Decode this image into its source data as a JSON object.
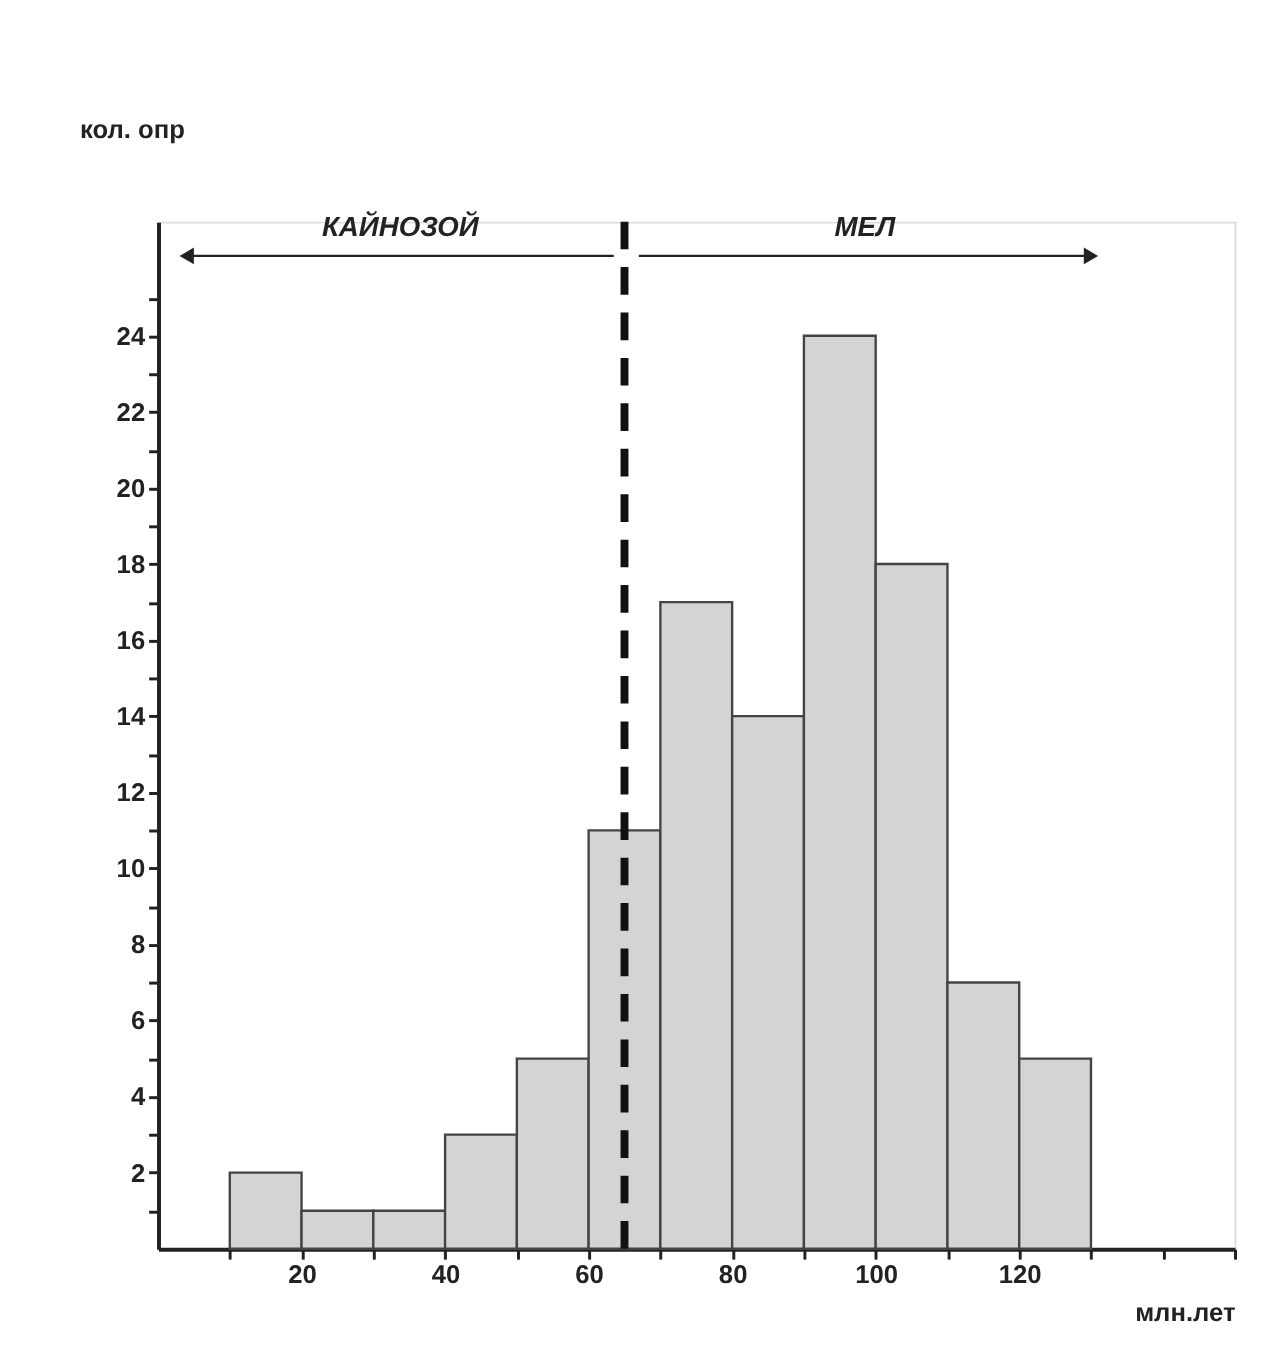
{
  "chart_data": {
    "type": "histogram",
    "xlabel": "млн.лет",
    "ylabel": "кол. опр",
    "bins": [
      10,
      20,
      30,
      40,
      50,
      60,
      70,
      80,
      90,
      100,
      110,
      120,
      130
    ],
    "values": [
      2,
      1,
      1,
      3,
      5,
      11,
      17,
      14,
      24,
      18,
      7,
      5
    ],
    "color": "#d3d4d6",
    "xlim": [
      0,
      150
    ],
    "xticks": [
      {
        "value": 10,
        "label": null
      },
      20,
      {
        "value": 30,
        "label": null
      },
      40,
      {
        "value": 50,
        "label": null
      },
      60,
      {
        "value": 70,
        "label": null
      },
      80,
      {
        "value": 90,
        "label": null
      },
      100,
      {
        "value": 110,
        "label": null
      },
      120,
      {
        "value": 130,
        "label": null
      },
      {
        "value": 140,
        "label": null
      },
      {
        "value": 150,
        "label": null
      }
    ],
    "ylim": [
      0,
      27
    ],
    "yticks": [
      {
        "value": 1,
        "label": null
      },
      2,
      {
        "value": 3,
        "label": null
      },
      4,
      {
        "value": 5,
        "label": null
      },
      6,
      {
        "value": 7,
        "label": null
      },
      8,
      {
        "value": 9,
        "label": null
      },
      10,
      {
        "value": 11,
        "label": null
      },
      12,
      {
        "value": 13,
        "label": null
      },
      14,
      {
        "value": 15,
        "label": null
      },
      16,
      {
        "value": 17,
        "label": null
      },
      18,
      {
        "value": 19,
        "label": null
      },
      20,
      {
        "value": 21,
        "label": null
      },
      22,
      {
        "value": 23,
        "label": null
      },
      24,
      {
        "value": 25,
        "label": null
      }
    ],
    "ref_lines": [
      {
        "axis": "x",
        "value": 65,
        "label": null,
        "color": "#111111",
        "line_style": "dashed"
      }
    ],
    "annotations": [
      "КАЙНОЗОЙ",
      "МЕЛ"
    ],
    "grid": false
  }
}
